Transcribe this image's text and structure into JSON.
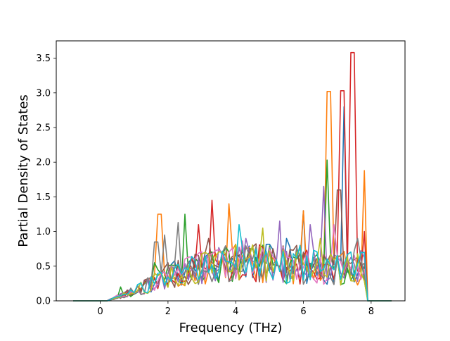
{
  "chart_data": {
    "type": "line",
    "title": "",
    "xlabel": "Frequency (THz)",
    "ylabel": "Partial Density of States",
    "xlim": [
      -1.3,
      9.0
    ],
    "ylim": [
      0.0,
      3.75
    ],
    "xticks": [
      0,
      2,
      4,
      6,
      8
    ],
    "yticks": [
      0.0,
      0.5,
      1.0,
      1.5,
      2.0,
      2.5,
      3.0,
      3.5
    ],
    "xtick_labels": [
      "0",
      "2",
      "4",
      "6",
      "8"
    ],
    "ytick_labels": [
      "0.0",
      "0.5",
      "1.0",
      "1.5",
      "2.0",
      "2.5",
      "3.0",
      "3.5"
    ],
    "grid": false,
    "legend": "none",
    "x_sampling": {
      "start": -0.8,
      "stop": 8.6,
      "count": 95
    },
    "series_colors": [
      "#1f77b4",
      "#ff7f0e",
      "#2ca02c",
      "#d62728",
      "#9467bd",
      "#8c564b",
      "#e377c2",
      "#7f7f7f",
      "#bcbd22",
      "#17becf"
    ],
    "series": [
      {
        "color": "#1f77b4",
        "peaks": [
          {
            "x": 7.2,
            "y": 2.8
          },
          {
            "x": 6.0,
            "y": 1.3
          },
          {
            "x": 5.5,
            "y": 0.9
          },
          {
            "x": 3.6,
            "y": 0.6
          }
        ]
      },
      {
        "color": "#ff7f0e",
        "peaks": [
          {
            "x": 6.75,
            "y": 3.02
          },
          {
            "x": 7.8,
            "y": 1.88
          },
          {
            "x": 1.75,
            "y": 1.25
          },
          {
            "x": 3.8,
            "y": 1.4
          },
          {
            "x": 6.0,
            "y": 1.3
          }
        ]
      },
      {
        "color": "#2ca02c",
        "peaks": [
          {
            "x": 6.7,
            "y": 2.03
          },
          {
            "x": 2.5,
            "y": 1.25
          },
          {
            "x": 1.6,
            "y": 0.55
          },
          {
            "x": 0.6,
            "y": 0.2
          }
        ]
      },
      {
        "color": "#d62728",
        "peaks": [
          {
            "x": 7.45,
            "y": 3.58
          },
          {
            "x": 7.15,
            "y": 3.03
          },
          {
            "x": 3.3,
            "y": 1.45
          },
          {
            "x": 7.8,
            "y": 1.0
          },
          {
            "x": 2.9,
            "y": 1.1
          }
        ]
      },
      {
        "color": "#9467bd",
        "peaks": [
          {
            "x": 6.6,
            "y": 1.65
          },
          {
            "x": 5.3,
            "y": 1.15
          },
          {
            "x": 4.3,
            "y": 0.9
          },
          {
            "x": 6.2,
            "y": 1.1
          }
        ]
      },
      {
        "color": "#8c564b",
        "peaks": [
          {
            "x": 7.05,
            "y": 1.6
          },
          {
            "x": 5.8,
            "y": 0.8
          },
          {
            "x": 3.2,
            "y": 0.9
          }
        ]
      },
      {
        "color": "#e377c2",
        "peaks": [
          {
            "x": 6.9,
            "y": 1.1
          },
          {
            "x": 4.8,
            "y": 0.75
          },
          {
            "x": 2.8,
            "y": 0.6
          }
        ]
      },
      {
        "color": "#7f7f7f",
        "peaks": [
          {
            "x": 1.9,
            "y": 0.95
          },
          {
            "x": 2.3,
            "y": 1.13
          },
          {
            "x": 1.65,
            "y": 0.85
          },
          {
            "x": 7.6,
            "y": 0.9
          }
        ]
      },
      {
        "color": "#bcbd22",
        "peaks": [
          {
            "x": 4.8,
            "y": 1.05
          },
          {
            "x": 6.5,
            "y": 0.9
          },
          {
            "x": 3.1,
            "y": 0.7
          }
        ]
      },
      {
        "color": "#17becf",
        "peaks": [
          {
            "x": 4.1,
            "y": 1.1
          },
          {
            "x": 5.9,
            "y": 0.8
          },
          {
            "x": 7.3,
            "y": 0.6
          }
        ]
      }
    ]
  }
}
